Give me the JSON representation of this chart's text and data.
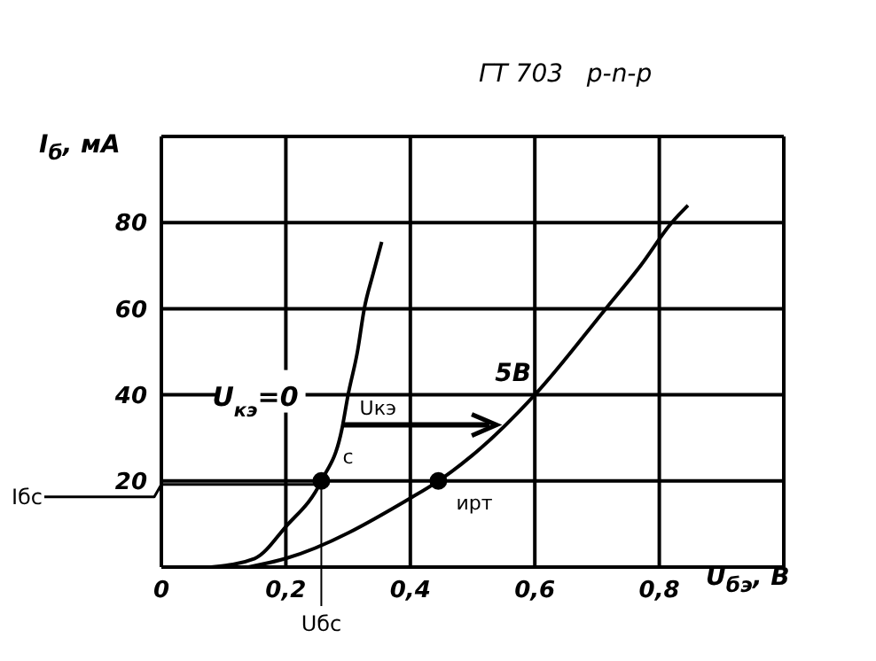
{
  "chart_data": {
    "type": "line",
    "title": "ГТ 703   р-n-р",
    "xlabel": "U$_{бэ}$, В",
    "ylabel": "I$_{б}$, мА",
    "xlim": [
      0,
      1
    ],
    "ylim": [
      0,
      100
    ],
    "xticks": [
      0,
      {
        "value": 0.2,
        "label": "0,2"
      },
      {
        "value": 0.4,
        "label": "0,4"
      },
      {
        "value": 0.6,
        "label": "0,6"
      },
      {
        "value": 0.8,
        "label": "0,8"
      },
      {
        "value": 1,
        "label": null
      }
    ],
    "yticks": [
      {
        "value": 0,
        "label": null
      },
      20,
      40,
      60,
      80,
      {
        "value": 100,
        "label": null
      }
    ],
    "grid": true,
    "line_style": "solid",
    "series": [
      {
        "name": "U$_{кэ}$=0",
        "color": "#000000",
        "x": [
          0.08,
          0.15,
          0.2,
          0.257,
          0.29,
          0.3,
          0.315,
          0.326,
          0.34,
          0.354
        ],
        "values": [
          0,
          2,
          9.4,
          20,
          32,
          40,
          50,
          60,
          68,
          75.5
        ]
      },
      {
        "name": "5В",
        "color": "#000000",
        "x": [
          0.14,
          0.2,
          0.4,
          0.445,
          0.5,
          0.6,
          0.714,
          0.77,
          0.82,
          0.846
        ],
        "values": [
          0,
          2,
          16,
          20,
          26,
          40,
          60,
          70,
          80,
          84
        ]
      },
      {
        "type": "scatter",
        "color": "#000000",
        "x": [
          0.257,
          0.445
        ],
        "values": [
          20,
          20
        ]
      }
    ],
    "annotations": [
      {
        "text": "с",
        "x": 0.257,
        "y": 20
      },
      {
        "text": "ирт",
        "x": 0.445,
        "y": 20
      },
      {
        "text": "Uкэ",
        "x": 0.29,
        "y": 33
      },
      {
        "text": "Iбс",
        "x": 0.257,
        "y": 20
      },
      {
        "text": "Uбс",
        "x": 0.257,
        "y": 20
      }
    ]
  }
}
